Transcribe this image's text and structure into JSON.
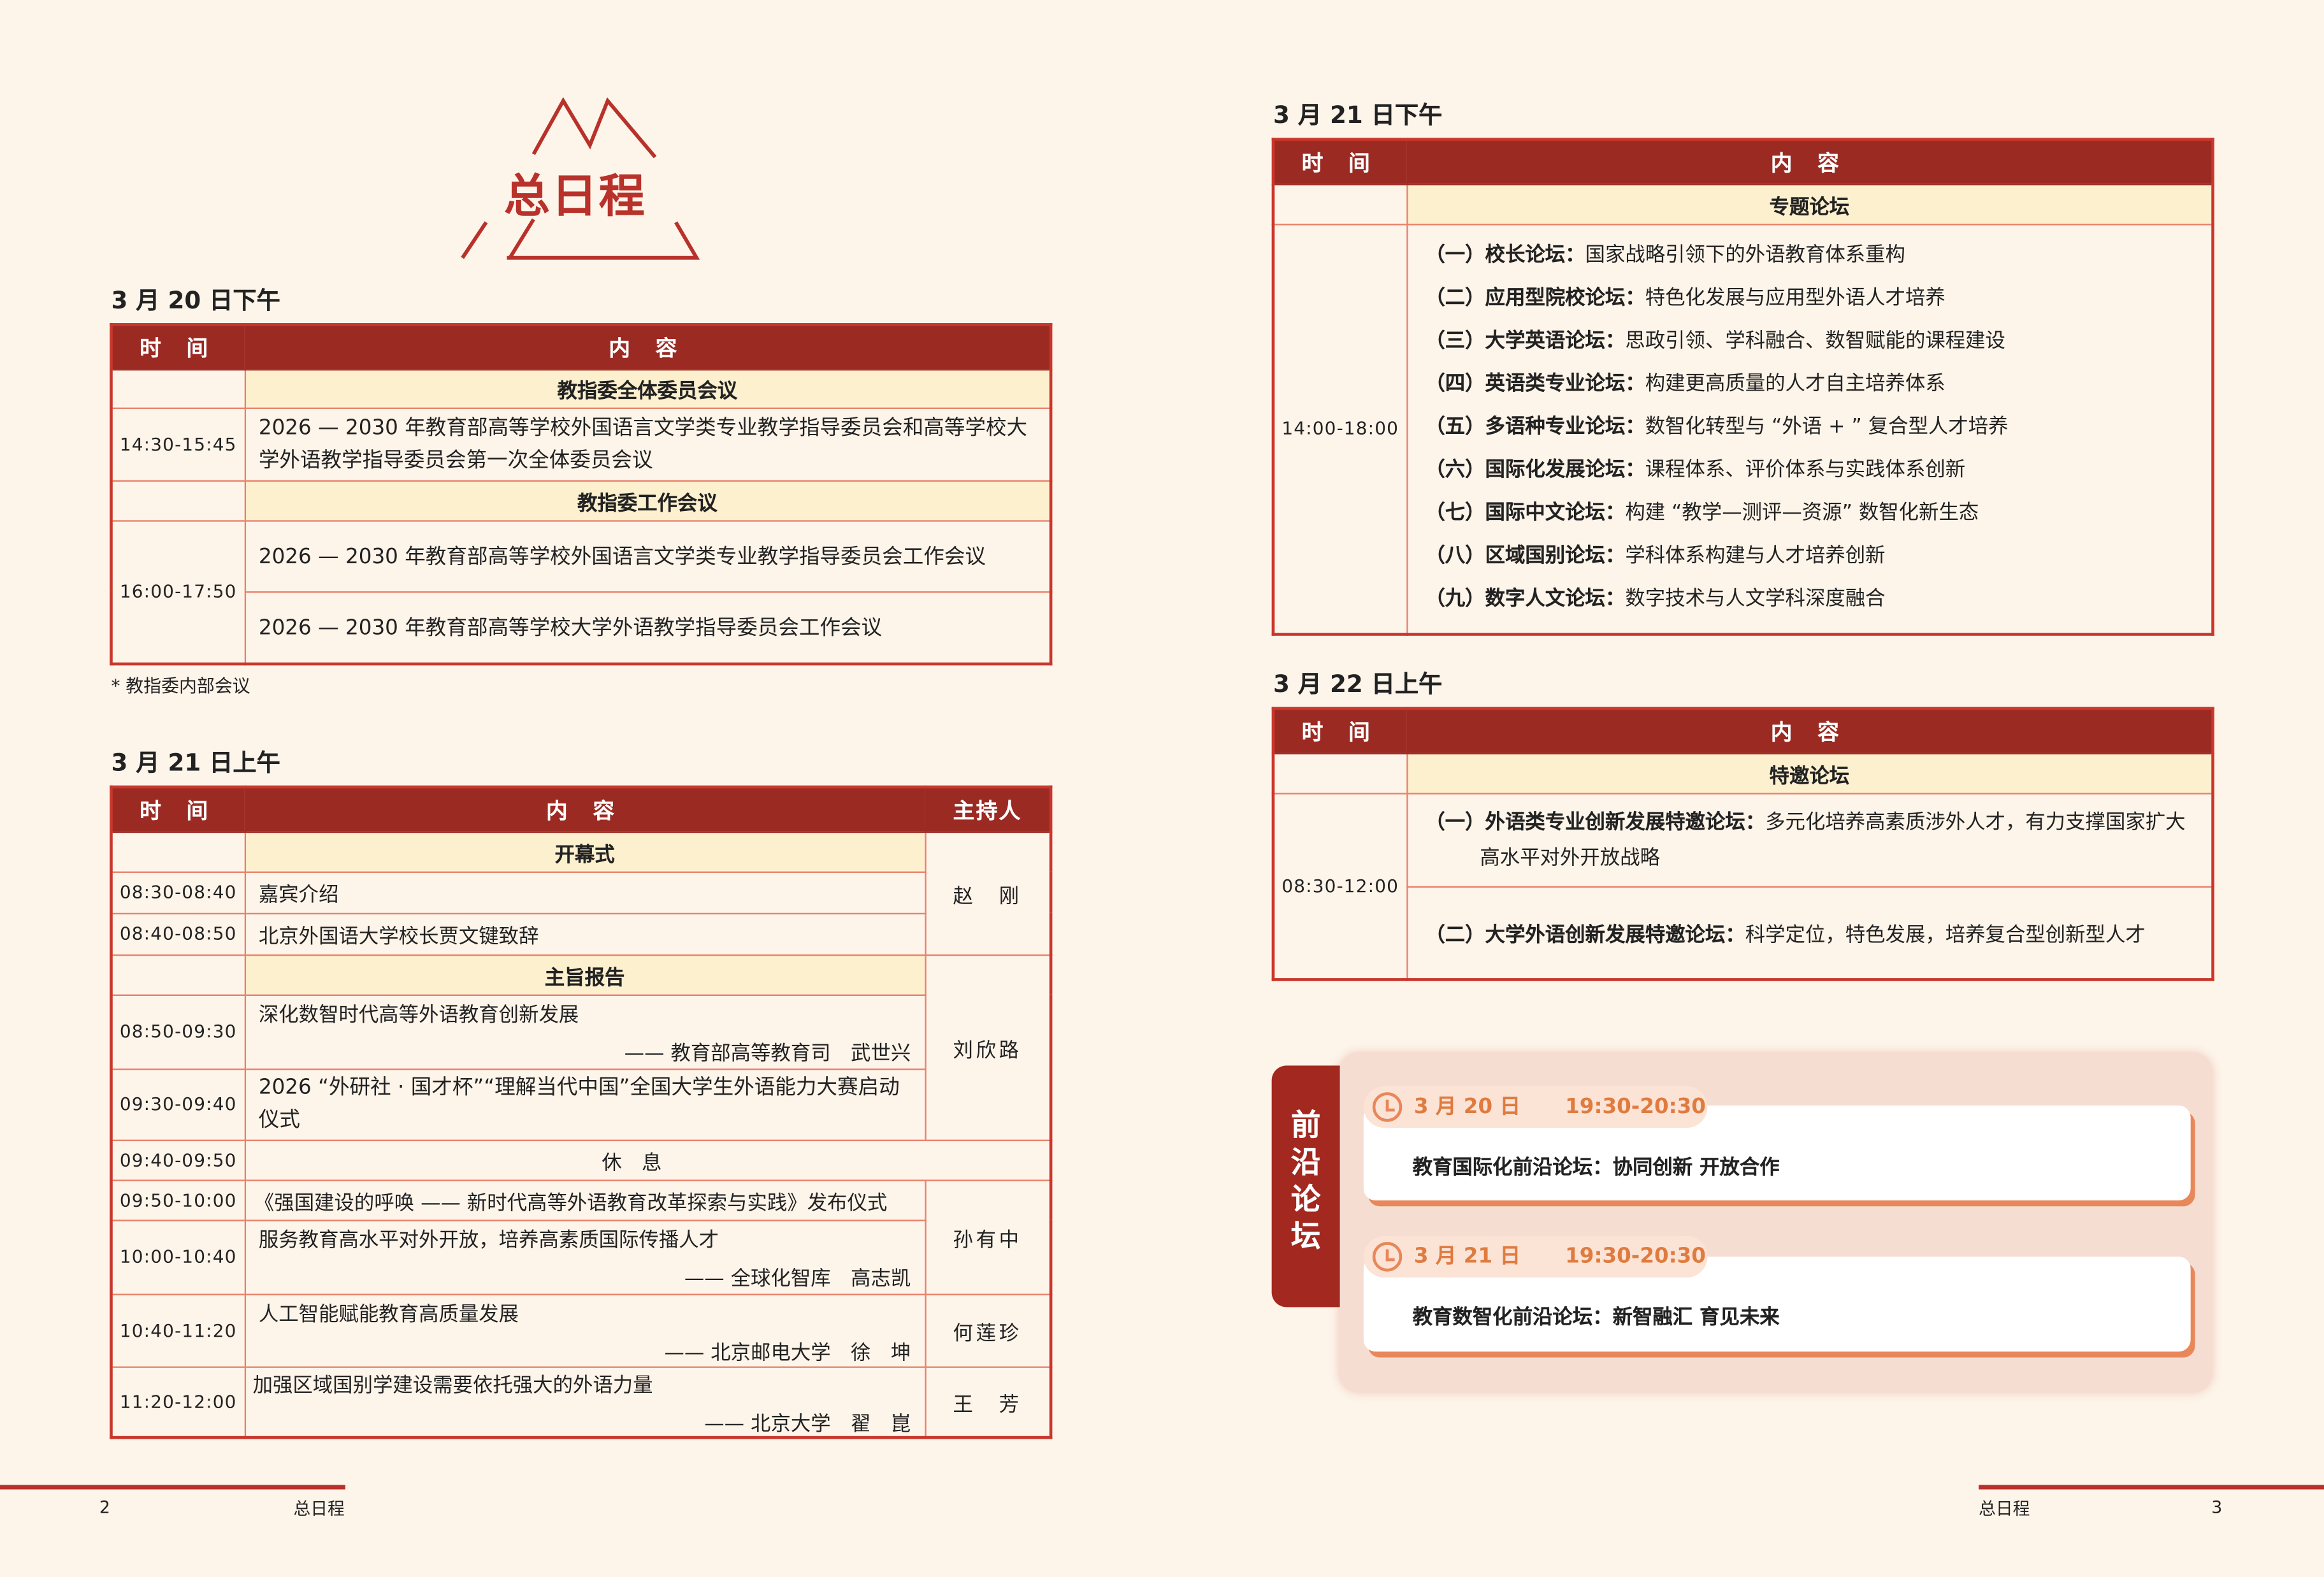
{
  "title": "总日程",
  "colors": {
    "header_red": "#9b2a23",
    "band_yellow": "#fdf0cf",
    "accent_orange": "#e07b3f",
    "background": "#fdf4ea"
  },
  "headers": {
    "time": "时 间",
    "content": "内 容",
    "host": "主持人"
  },
  "day1": {
    "title": "3 月 20 日下午",
    "band1": "教指委全体委员会议",
    "row1": {
      "time": "14:30-15:45",
      "content": "2026 — 2030 年教育部高等学校外国语言文学类专业教学指导委员会和高等学校大学外语教学指导委员会第一次全体委员会议"
    },
    "band2": "教指委工作会议",
    "time2": "16:00-17:50",
    "row2a": "2026 — 2030 年教育部高等学校外国语言文学类专业教学指导委员会工作会议",
    "row2b": "2026 — 2030 年教育部高等学校大学外语教学指导委员会工作会议",
    "note": "* 教指委内部会议"
  },
  "day2am": {
    "title": "3 月 21 日上午",
    "band_open": "开幕式",
    "rows": [
      {
        "time": "08:30-08:40",
        "content": "嘉宾介绍"
      },
      {
        "time": "08:40-08:50",
        "content": "北京外国语大学校长贾文键致辞"
      },
      {
        "time": "08:50-09:30",
        "content": "深化数智时代高等外语教育创新发展",
        "speaker": "—— 教育部高等教育司　武世兴"
      },
      {
        "time": "09:30-09:40",
        "content": "2026 “外研社 · 国才杯”“理解当代中国”全国大学生外语能力大赛启动仪式"
      },
      {
        "time": "09:40-09:50",
        "content": "休　息"
      },
      {
        "time": "09:50-10:00",
        "content": "《强国建设的呼唤 —— 新时代高等外语教育改革探索与实践》发布仪式"
      },
      {
        "time": "10:00-10:40",
        "content": "服务教育高水平对外开放，培养高素质国际传播人才",
        "speaker": "—— 全球化智库　高志凯"
      },
      {
        "time": "10:40-11:20",
        "content": "人工智能赋能教育高质量发展",
        "speaker": "—— 北京邮电大学　徐　坤"
      },
      {
        "time": "11:20-12:00",
        "content": "加强区域国别学建设需要依托强大的外语力量",
        "speaker": "—— 北京大学　翟　崑"
      }
    ],
    "band_keynote": "主旨报告",
    "hosts": [
      "赵　刚",
      "刘欣路",
      "孙有中",
      "何莲珍",
      "王　芳"
    ]
  },
  "day2pm": {
    "title": "3 月 21 日下午",
    "band": "专题论坛",
    "time": "14:00-18:00",
    "items": [
      {
        "num": "（一）",
        "name": "校长论坛：",
        "desc": "国家战略引领下的外语教育体系重构"
      },
      {
        "num": "（二）",
        "name": "应用型院校论坛：",
        "desc": "特色化发展与应用型外语人才培养"
      },
      {
        "num": "（三）",
        "name": "大学英语论坛：",
        "desc": "思政引领、学科融合、数智赋能的课程建设"
      },
      {
        "num": "（四）",
        "name": "英语类专业论坛：",
        "desc": "构建更高质量的人才自主培养体系"
      },
      {
        "num": "（五）",
        "name": "多语种专业论坛：",
        "desc": "数智化转型与 “外语 + ” 复合型人才培养"
      },
      {
        "num": "（六）",
        "name": "国际化发展论坛：",
        "desc": "课程体系、评价体系与实践体系创新"
      },
      {
        "num": "（七）",
        "name": "国际中文论坛：",
        "desc": "构建 “教学—测评—资源” 数智化新生态"
      },
      {
        "num": "（八）",
        "name": "区域国别论坛：",
        "desc": "学科体系构建与人才培养创新"
      },
      {
        "num": "（九）",
        "name": "数字人文论坛：",
        "desc": "数字技术与人文学科深度融合"
      }
    ]
  },
  "day3": {
    "title": "3 月 22 日上午",
    "band": "特邀论坛",
    "time": "08:30-12:00",
    "items": [
      {
        "num": "（一）",
        "name": "外语类专业创新发展特邀论坛：",
        "desc": "多元化培养高素质涉外人才，有力支撑国家扩大高水平对外开放战略"
      },
      {
        "num": "（二）",
        "name": "大学外语创新发展特邀论坛：",
        "desc": "科学定位，特色发展，培养复合型创新型人才"
      }
    ]
  },
  "frontier": {
    "label": "前沿论坛",
    "events": [
      {
        "date": "3 月 20 日",
        "time": "19:30-20:30",
        "title": "教育国际化前沿论坛：协同创新  开放合作"
      },
      {
        "date": "3 月 21 日",
        "time": "19:30-20:30",
        "title": "教育数智化前沿论坛：新智融汇  育见未来"
      }
    ]
  },
  "footer": {
    "left_page": "2",
    "left_title": "总日程",
    "right_title": "总日程",
    "right_page": "3"
  }
}
